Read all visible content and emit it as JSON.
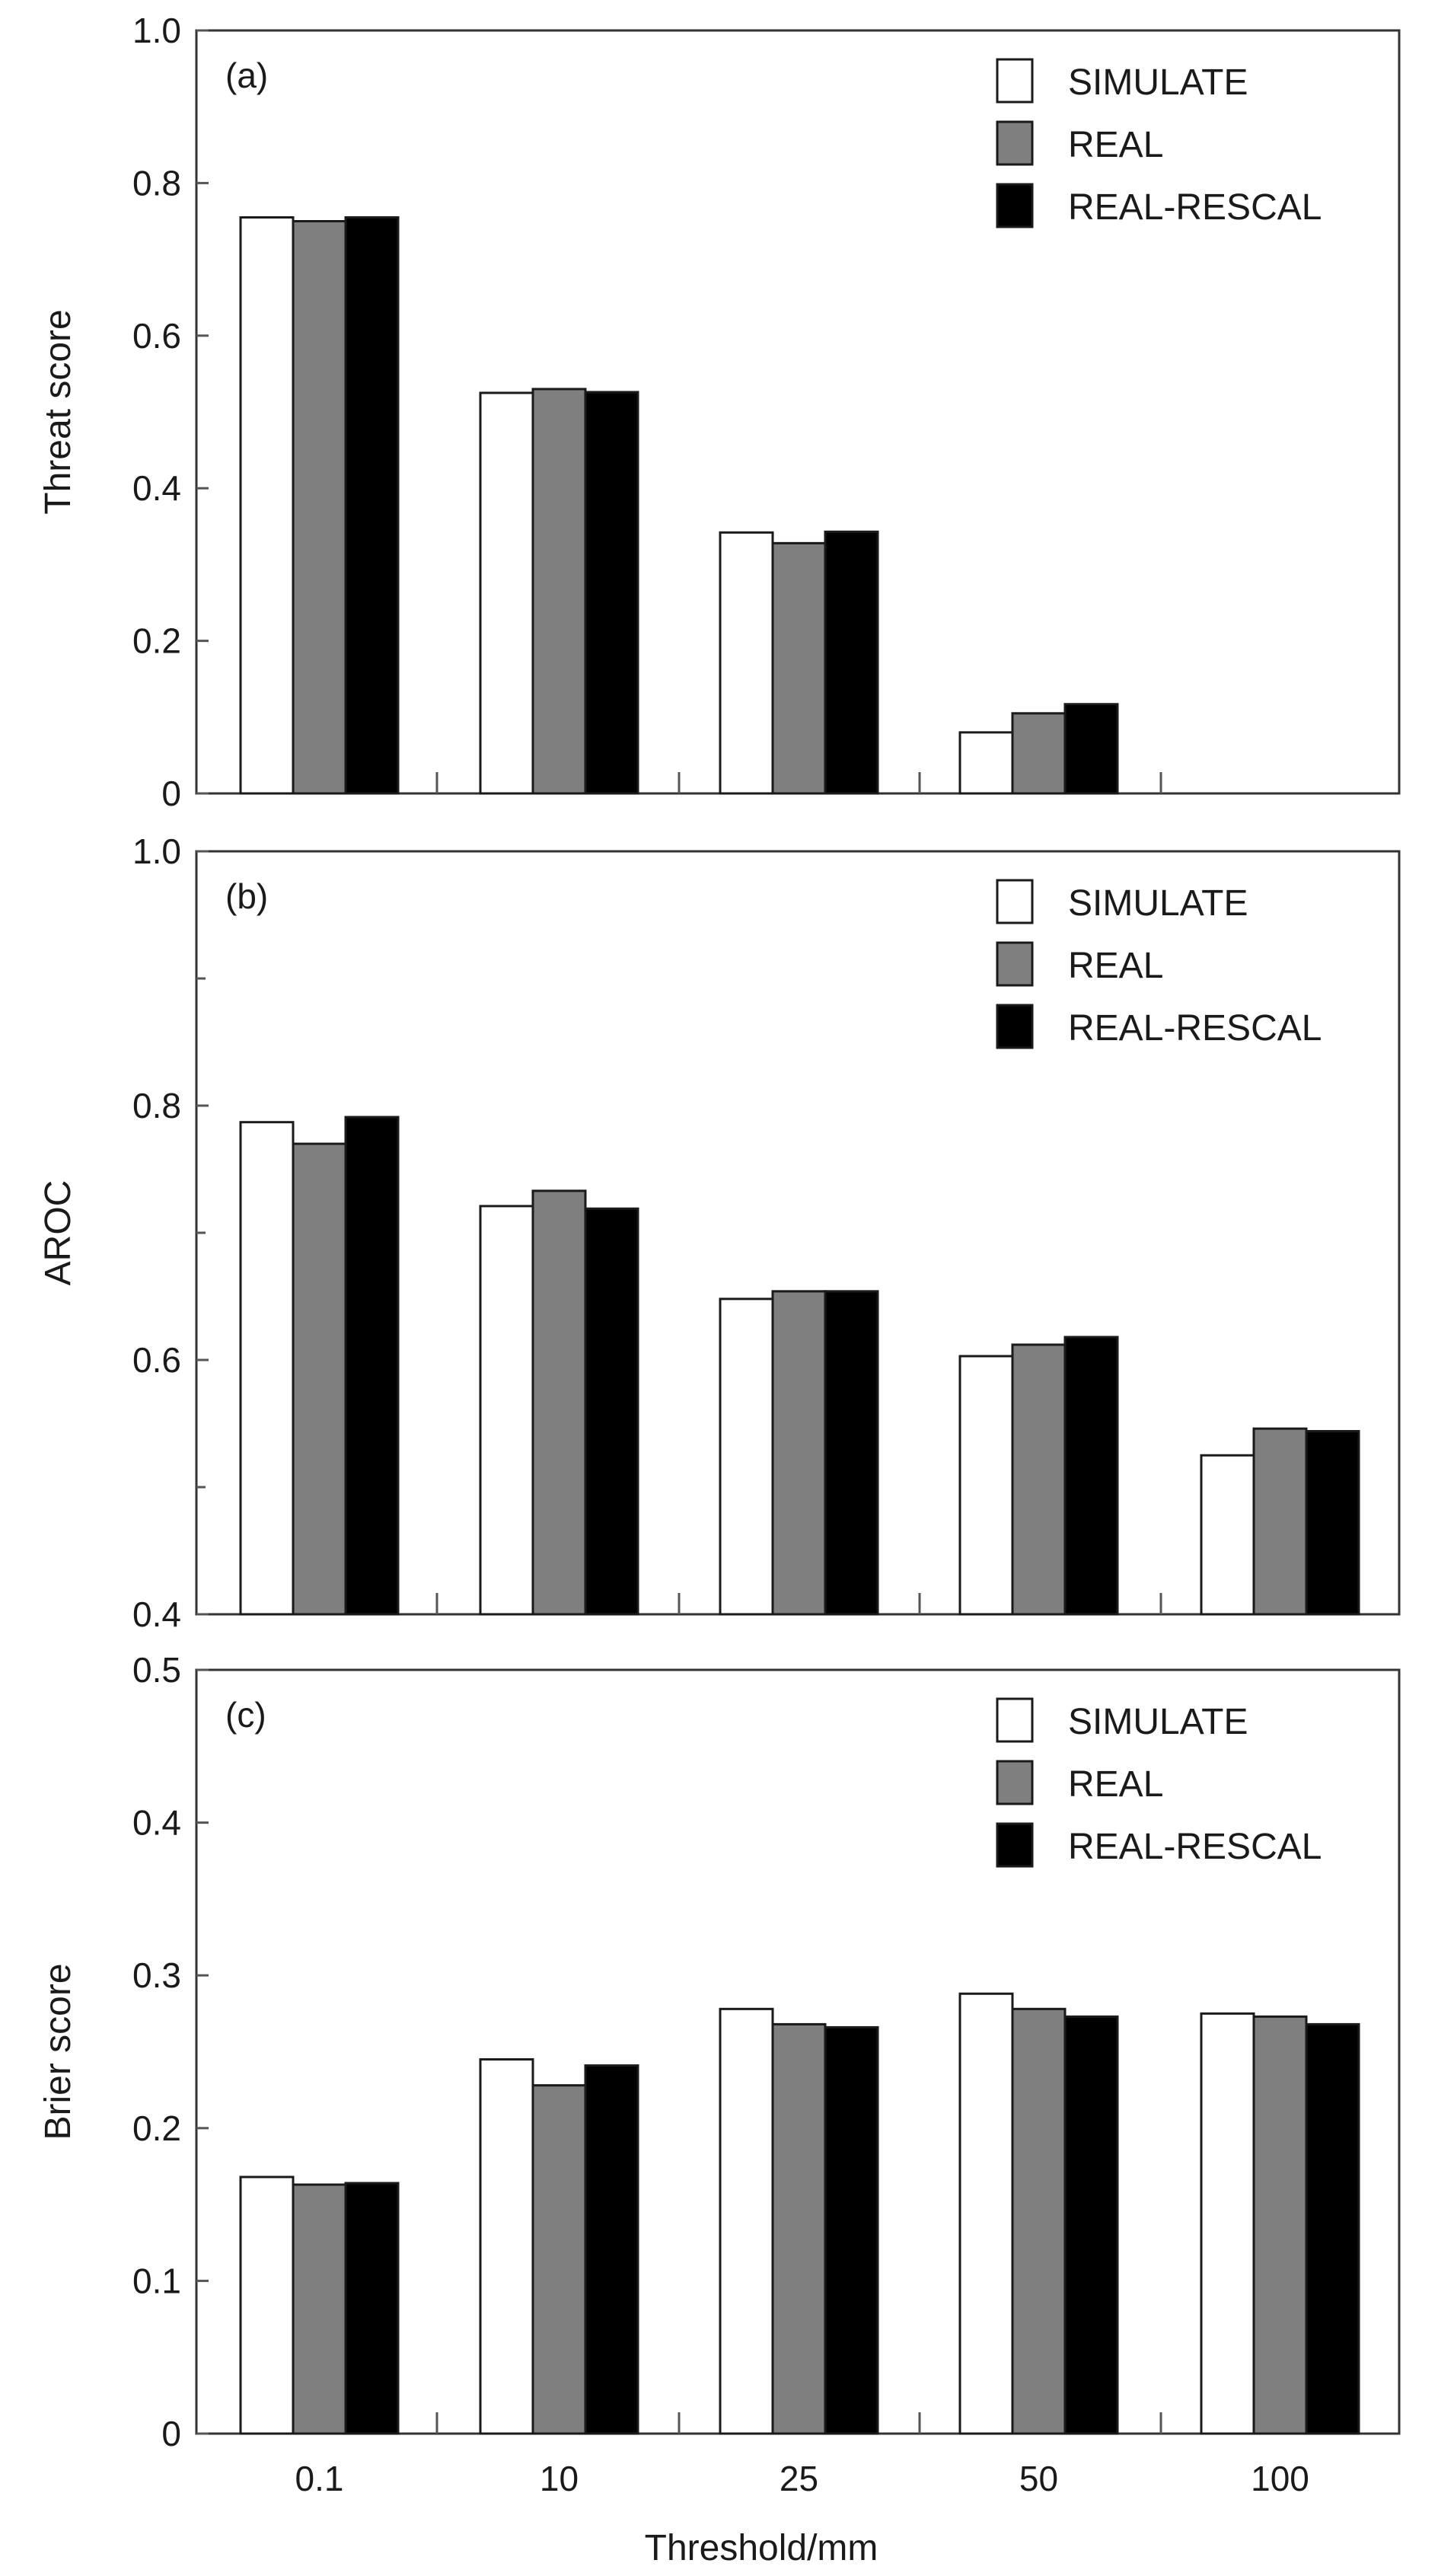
{
  "xlabel": "Threshold/mm",
  "chart_data": [
    {
      "type": "bar",
      "panel_label": "(a)",
      "ylabel": "Threat score",
      "categories": [
        "0.1",
        "10",
        "25",
        "50",
        "100"
      ],
      "ylim": [
        0,
        1.0
      ],
      "yticks": [
        "0",
        "0.2",
        "0.4",
        "0.6",
        "0.8",
        "1.0"
      ],
      "ytick_values": [
        0,
        0.2,
        0.4,
        0.6,
        0.8,
        1.0
      ],
      "series": [
        {
          "name": "SIMULATE",
          "color": "#ffffff",
          "values": [
            0.755,
            0.525,
            0.342,
            0.08,
            0
          ]
        },
        {
          "name": "REAL",
          "color": "#7f7f7f",
          "values": [
            0.75,
            0.53,
            0.328,
            0.105,
            0
          ]
        },
        {
          "name": "REAL-RESCAL",
          "color": "#000000",
          "values": [
            0.755,
            0.526,
            0.343,
            0.117,
            0
          ]
        }
      ],
      "legend_position": "top-right",
      "grid": false
    },
    {
      "type": "bar",
      "panel_label": "(b)",
      "ylabel": "AROC",
      "categories": [
        "0.1",
        "10",
        "25",
        "50",
        "100"
      ],
      "ylim": [
        0.4,
        1.0
      ],
      "yticks": [
        "0.4",
        "0.6",
        "0.8",
        "1.0"
      ],
      "ytick_values": [
        0.4,
        0.6,
        0.8,
        1.0
      ],
      "minor_ytick_values": [
        0.5,
        0.7,
        0.9
      ],
      "series": [
        {
          "name": "SIMULATE",
          "color": "#ffffff",
          "values": [
            0.787,
            0.721,
            0.648,
            0.603,
            0.525
          ]
        },
        {
          "name": "REAL",
          "color": "#7f7f7f",
          "values": [
            0.77,
            0.733,
            0.654,
            0.612,
            0.546
          ]
        },
        {
          "name": "REAL-RESCAL",
          "color": "#000000",
          "values": [
            0.791,
            0.719,
            0.654,
            0.618,
            0.544
          ]
        }
      ],
      "legend_position": "top-right",
      "grid": false
    },
    {
      "type": "bar",
      "panel_label": "(c)",
      "ylabel": "Brier score",
      "categories": [
        "0.1",
        "10",
        "25",
        "50",
        "100"
      ],
      "ylim": [
        0,
        0.5
      ],
      "yticks": [
        "0",
        "0.1",
        "0.2",
        "0.3",
        "0.4",
        "0.5"
      ],
      "ytick_values": [
        0,
        0.1,
        0.2,
        0.3,
        0.4,
        0.5
      ],
      "series": [
        {
          "name": "SIMULATE",
          "color": "#ffffff",
          "values": [
            0.168,
            0.245,
            0.278,
            0.288,
            0.275
          ]
        },
        {
          "name": "REAL",
          "color": "#7f7f7f",
          "values": [
            0.163,
            0.228,
            0.268,
            0.278,
            0.273
          ]
        },
        {
          "name": "REAL-RESCAL",
          "color": "#000000",
          "values": [
            0.164,
            0.241,
            0.266,
            0.273,
            0.268
          ]
        }
      ],
      "legend_position": "top-right",
      "grid": false
    }
  ]
}
